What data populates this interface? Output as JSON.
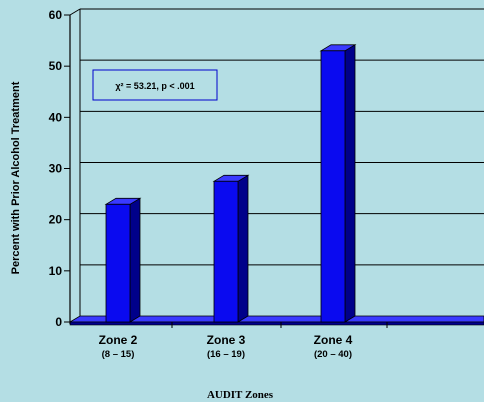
{
  "chart_data": {
    "type": "bar",
    "categories": [
      "Zone 2",
      "Zone 3",
      "Zone 4"
    ],
    "category_subtitles": [
      "(8 – 15)",
      "(16 – 19)",
      "(20 – 40)"
    ],
    "values": [
      23,
      27.5,
      53
    ],
    "ylabel": "Percent with Prior Alcohol Treatment",
    "xlabel": "AUDIT Zones",
    "ylim": [
      0,
      60
    ],
    "yticks": [
      0,
      10,
      20,
      30,
      40,
      50,
      60
    ],
    "grid": true,
    "annotation": "χ² = 53.21, p < .001",
    "bar_color": "#0a0af0",
    "bar_side_color": "#00008a",
    "bar_top_color": "#3a3aff",
    "background_color": "#b4dee4"
  }
}
